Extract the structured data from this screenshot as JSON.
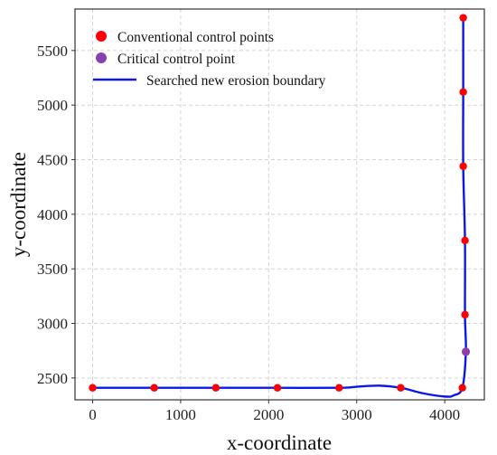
{
  "chart_data": {
    "type": "scatter",
    "xlabel": "x-coordinate",
    "ylabel": "y-coordinate",
    "xlim": [
      -200,
      4450
    ],
    "ylim": [
      2300,
      5880
    ],
    "x_ticks": [
      0,
      1000,
      2000,
      3000,
      4000
    ],
    "y_ticks": [
      2500,
      3000,
      3500,
      4000,
      4500,
      5000,
      5500
    ],
    "grid": true,
    "legend_position": "top-left",
    "legend": {
      "conventional_label": "Conventional control points",
      "critical_label": "Critical control point",
      "boundary_label": "Searched new erosion boundary"
    },
    "colors": {
      "conventional": "#ff0000",
      "critical": "#8e3fae",
      "boundary": "#0b18e6"
    },
    "series": [
      {
        "name": "Conventional control points",
        "points": [
          {
            "x": 0,
            "y": 2410
          },
          {
            "x": 700,
            "y": 2410
          },
          {
            "x": 1400,
            "y": 2410
          },
          {
            "x": 2100,
            "y": 2410
          },
          {
            "x": 2800,
            "y": 2410
          },
          {
            "x": 3500,
            "y": 2410
          },
          {
            "x": 4200,
            "y": 2410
          },
          {
            "x": 4230,
            "y": 3080
          },
          {
            "x": 4230,
            "y": 3760
          },
          {
            "x": 4210,
            "y": 4440
          },
          {
            "x": 4210,
            "y": 5120
          },
          {
            "x": 4210,
            "y": 5800
          }
        ]
      },
      {
        "name": "Critical control point",
        "points": [
          {
            "x": 4240,
            "y": 2740
          }
        ]
      },
      {
        "name": "Searched new erosion boundary",
        "points": [
          {
            "x": 0,
            "y": 2410
          },
          {
            "x": 700,
            "y": 2410
          },
          {
            "x": 1400,
            "y": 2410
          },
          {
            "x": 2100,
            "y": 2410
          },
          {
            "x": 2800,
            "y": 2410
          },
          {
            "x": 3000,
            "y": 2420
          },
          {
            "x": 3250,
            "y": 2430
          },
          {
            "x": 3500,
            "y": 2410
          },
          {
            "x": 3750,
            "y": 2360
          },
          {
            "x": 4000,
            "y": 2330
          },
          {
            "x": 4100,
            "y": 2340
          },
          {
            "x": 4200,
            "y": 2410
          },
          {
            "x": 4240,
            "y": 2740
          },
          {
            "x": 4230,
            "y": 3080
          },
          {
            "x": 4230,
            "y": 3760
          },
          {
            "x": 4210,
            "y": 4440
          },
          {
            "x": 4210,
            "y": 5120
          },
          {
            "x": 4210,
            "y": 5800
          }
        ]
      }
    ]
  }
}
